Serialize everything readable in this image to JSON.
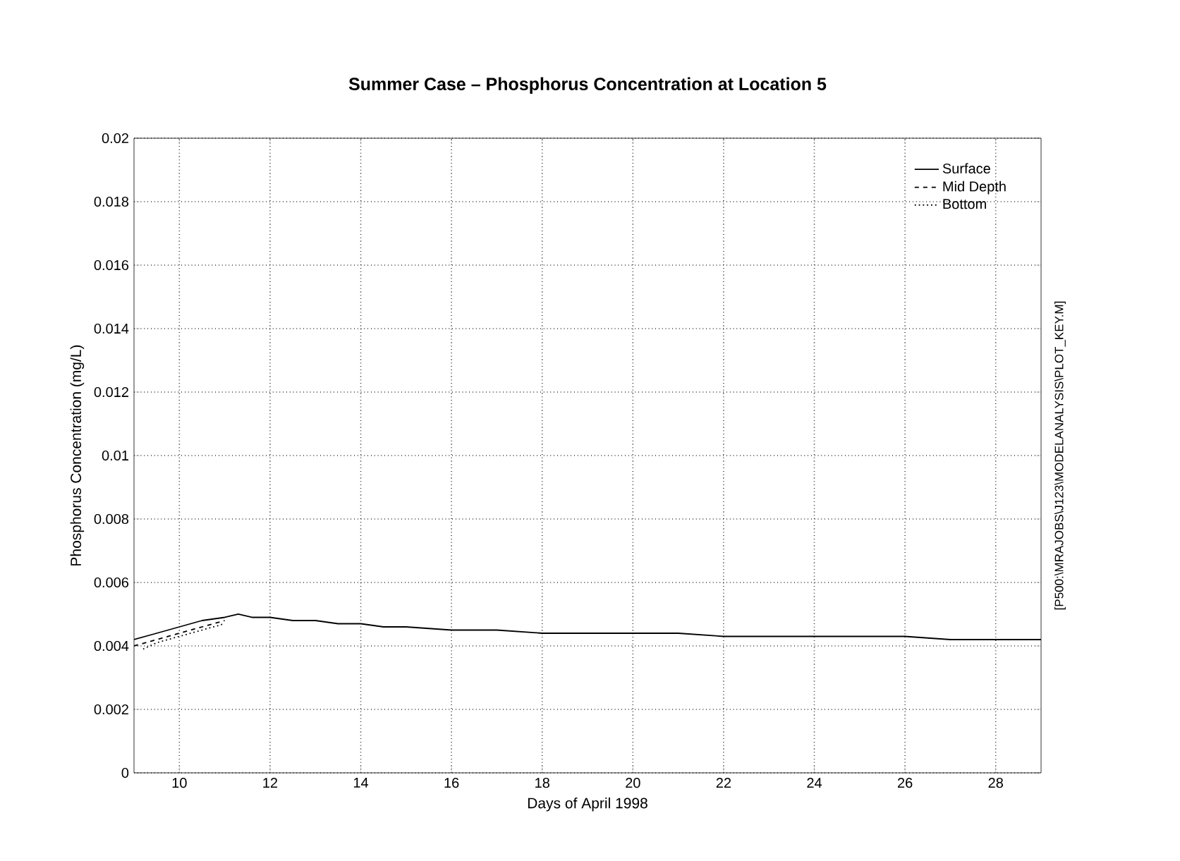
{
  "chart_data": {
    "type": "line",
    "title": "Summer Case – Phosphorus Concentration at Location 5",
    "xlabel": "Days of April 1998",
    "ylabel": "Phosphorus Concentration (mg/L)",
    "xlim": [
      9,
      29
    ],
    "ylim": [
      0,
      0.02
    ],
    "xticks": [
      10,
      12,
      14,
      16,
      18,
      20,
      22,
      24,
      26,
      28
    ],
    "yticks": [
      0,
      0.002,
      0.004,
      0.006,
      0.008,
      0.01,
      0.012,
      0.014,
      0.016,
      0.018,
      0.02
    ],
    "grid": true,
    "legend": "top right",
    "annotations": [
      "[P500:\\MRAJOBS\\J123\\MODELANALYSIS\\PLOT_KEY.M]"
    ],
    "series": [
      {
        "name": "Surface",
        "color": "#000000",
        "line_style": "solid",
        "x": [
          9,
          9.5,
          10,
          10.5,
          11,
          11.3,
          11.6,
          12,
          12.5,
          13,
          13.5,
          14,
          14.5,
          15,
          16,
          17,
          18,
          19,
          20,
          21,
          22,
          23,
          24,
          25,
          26,
          27,
          28,
          29
        ],
        "values": [
          0.0042,
          0.0044,
          0.0046,
          0.0048,
          0.0049,
          0.005,
          0.0049,
          0.0049,
          0.0048,
          0.0048,
          0.0047,
          0.0047,
          0.0046,
          0.0046,
          0.0045,
          0.0045,
          0.0044,
          0.0044,
          0.0044,
          0.0044,
          0.0043,
          0.0043,
          0.0043,
          0.0043,
          0.0043,
          0.0042,
          0.0042,
          0.0042
        ]
      },
      {
        "name": "Mid Depth",
        "color": "#000000",
        "line_style": "dashed",
        "x": [
          9,
          9.5,
          10,
          10.5,
          11
        ],
        "values": [
          0.004,
          0.0042,
          0.0044,
          0.0046,
          0.0048
        ]
      },
      {
        "name": "Bottom",
        "color": "#000000",
        "line_style": "dotted",
        "x": [
          9.2,
          9.5,
          10,
          10.5,
          11
        ],
        "values": [
          0.0039,
          0.0041,
          0.0043,
          0.0045,
          0.0047
        ]
      }
    ]
  }
}
